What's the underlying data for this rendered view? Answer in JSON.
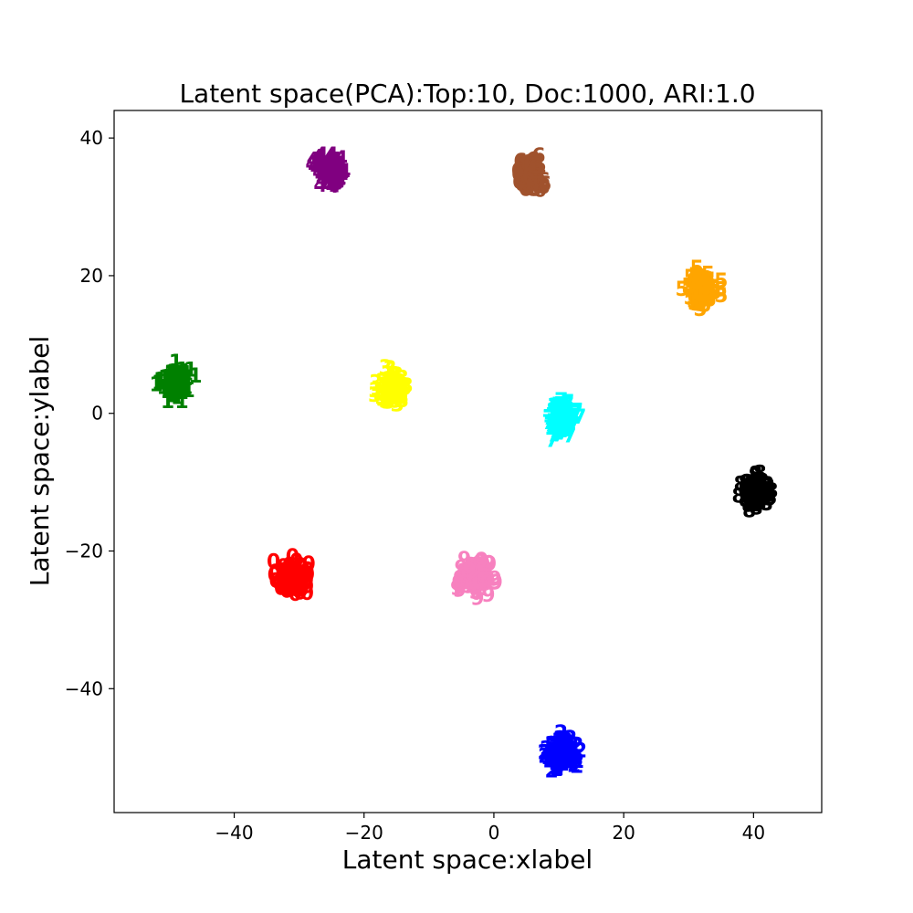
{
  "chart_data": {
    "type": "scatter",
    "title": "Latent space(PCA):Top:10, Doc:1000, ARI:1.0",
    "xlabel": "Latent space:xlabel",
    "ylabel": "Latent space:ylabel",
    "xlim": [
      -58.5,
      50.5
    ],
    "ylim": [
      -58,
      44
    ],
    "xticks": [
      -40,
      -20,
      0,
      20,
      40
    ],
    "yticks": [
      -40,
      -20,
      0,
      20,
      40
    ],
    "xtick_labels": [
      "−40",
      "−20",
      "0",
      "20",
      "40"
    ],
    "ytick_labels": [
      "−40",
      "−20",
      "0",
      "20",
      "40"
    ],
    "grid": false,
    "marker_style": "digit glyphs (cluster label)",
    "series": [
      {
        "label": "0",
        "color": "#ff0000",
        "center": [
          -31,
          -24
        ],
        "spread": [
          2.2,
          2.2
        ],
        "count": 100
      },
      {
        "label": "1",
        "color": "#008000",
        "center": [
          -49,
          4.5
        ],
        "spread": [
          2.0,
          2.0
        ],
        "count": 100
      },
      {
        "label": "2",
        "color": "#0000ff",
        "center": [
          10.5,
          -49.5
        ],
        "spread": [
          2.0,
          2.0
        ],
        "count": 100
      },
      {
        "label": "3",
        "color": "#ffff00",
        "center": [
          -15.5,
          3.5
        ],
        "spread": [
          2.0,
          2.0
        ],
        "count": 100
      },
      {
        "label": "4",
        "color": "#800080",
        "center": [
          -25,
          35
        ],
        "spread": [
          2.0,
          2.0
        ],
        "count": 100
      },
      {
        "label": "5",
        "color": "#ffa500",
        "center": [
          32,
          18
        ],
        "spread": [
          2.0,
          2.0
        ],
        "count": 100
      },
      {
        "label": "6",
        "color": "#a0522d",
        "center": [
          5.5,
          34.5
        ],
        "spread": [
          1.8,
          2.0
        ],
        "count": 100
      },
      {
        "label": "7",
        "color": "#00ffff",
        "center": [
          10.5,
          -1
        ],
        "spread": [
          1.8,
          2.2
        ],
        "count": 100
      },
      {
        "label": "8",
        "color": "#000000",
        "center": [
          40.5,
          -11.5
        ],
        "spread": [
          2.2,
          1.8
        ],
        "count": 100
      },
      {
        "label": "9",
        "color": "#f781bf",
        "center": [
          -3,
          -24
        ],
        "spread": [
          2.2,
          2.0
        ],
        "count": 100
      }
    ]
  }
}
